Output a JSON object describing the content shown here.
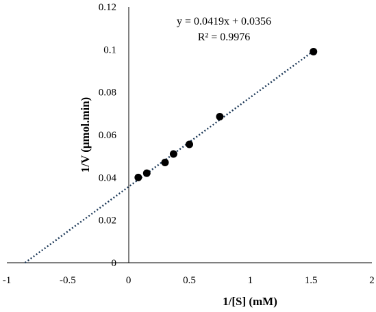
{
  "chart_data": {
    "type": "scatter",
    "title": "",
    "xlabel": "1/[S] (mM)",
    "ylabel": "1/V (μmol.min)",
    "xlim": [
      -1,
      2
    ],
    "ylim": [
      0,
      0.12
    ],
    "x_ticks": [
      "-1",
      "-0.5",
      "0",
      "0.5",
      "1",
      "1.5",
      "2"
    ],
    "y_ticks": [
      "0",
      "0.02",
      "0.04",
      "0.06",
      "0.08",
      "0.1",
      "0.12"
    ],
    "grid": false,
    "series": [
      {
        "x": [
          0.08,
          0.15,
          0.3,
          0.37,
          0.5,
          0.75,
          1.52
        ],
        "y": [
          0.04,
          0.042,
          0.047,
          0.051,
          0.0555,
          0.0685,
          0.099
        ]
      }
    ],
    "trendline": {
      "type": "linear",
      "slope": 0.0419,
      "intercept": 0.0356,
      "x_range": [
        -0.85,
        1.52
      ],
      "style": "dotted",
      "color": "#1f3b5a"
    },
    "annotations": {
      "equation": "y = 0.0419x + 0.0356",
      "r_squared": "R² = 0.9976"
    },
    "colors": {
      "marker": "#000000",
      "axis": "#000000"
    }
  }
}
